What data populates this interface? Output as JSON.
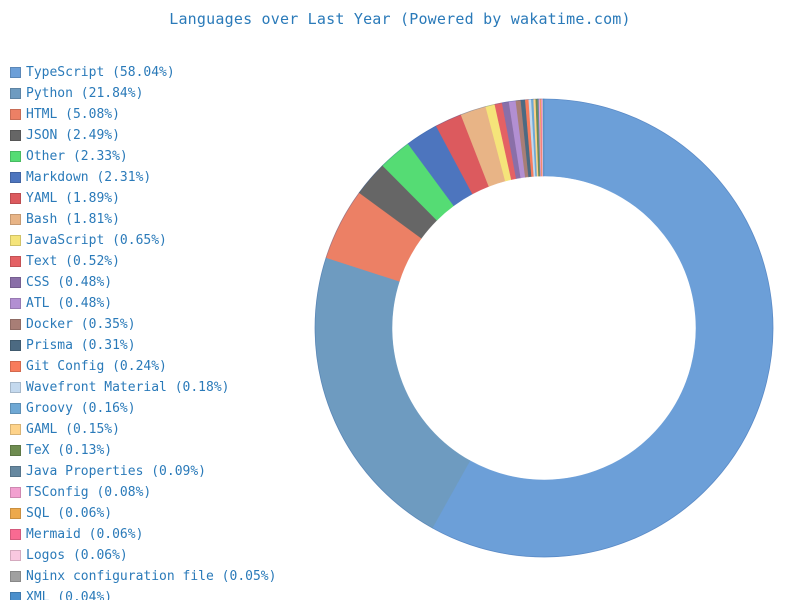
{
  "title": "Languages over Last Year (Powered by wakatime.com)",
  "colors": {
    "title_text": "#2a7ab9",
    "legend_text": "#2a7ab9",
    "background": "#ffffff"
  },
  "chart_data": {
    "type": "pie",
    "donut": true,
    "title": "Languages over Last Year (Powered by wakatime.com)",
    "legend_position": "left",
    "center": [
      544,
      328
    ],
    "outer_radius": 229,
    "inner_radius": 152,
    "start_angle_deg": 0,
    "direction": "clockwise",
    "categories": [
      "TypeScript",
      "Python",
      "HTML",
      "JSON",
      "Other",
      "Markdown",
      "YAML",
      "Bash",
      "JavaScript",
      "Text",
      "CSS",
      "ATL",
      "Docker",
      "Prisma",
      "Git Config",
      "Wavefront Material",
      "Groovy",
      "GAML",
      "TeX",
      "Java Properties",
      "TSConfig",
      "SQL",
      "Mermaid",
      "Logos",
      "Nginx configuration file",
      "XML"
    ],
    "values": [
      58.04,
      21.84,
      5.08,
      2.49,
      2.33,
      2.31,
      1.89,
      1.81,
      0.65,
      0.52,
      0.48,
      0.48,
      0.35,
      0.31,
      0.24,
      0.18,
      0.16,
      0.15,
      0.13,
      0.09,
      0.08,
      0.06,
      0.06,
      0.06,
      0.05,
      0.04
    ],
    "slice_colors": [
      "#6c9fd8",
      "#6e9bc0",
      "#ec8065",
      "#666666",
      "#55dc74",
      "#4d75be",
      "#dc5a5e",
      "#e8b486",
      "#f5e47a",
      "#e46164",
      "#8a6fa8",
      "#b28fd2",
      "#a87e76",
      "#4c6a82",
      "#f87c5c",
      "#c4d9ee",
      "#6fa8d4",
      "#fed38a",
      "#6e8c50",
      "#6688a0",
      "#f2a0d0",
      "#eda94c",
      "#f96a92",
      "#f9c8e0",
      "#a0a0a0",
      "#4b8fcc"
    ]
  },
  "legend": {
    "items": [
      {
        "label": "TypeScript (58.04%)",
        "color": "#6c9fd8"
      },
      {
        "label": "Python (21.84%)",
        "color": "#6e9bc0"
      },
      {
        "label": "HTML (5.08%)",
        "color": "#ec8065"
      },
      {
        "label": "JSON (2.49%)",
        "color": "#666666"
      },
      {
        "label": "Other (2.33%)",
        "color": "#55dc74"
      },
      {
        "label": "Markdown (2.31%)",
        "color": "#4d75be"
      },
      {
        "label": "YAML (1.89%)",
        "color": "#dc5a5e"
      },
      {
        "label": "Bash (1.81%)",
        "color": "#e8b486"
      },
      {
        "label": "JavaScript (0.65%)",
        "color": "#f5e47a"
      },
      {
        "label": "Text (0.52%)",
        "color": "#e46164"
      },
      {
        "label": "CSS (0.48%)",
        "color": "#8a6fa8"
      },
      {
        "label": "ATL (0.48%)",
        "color": "#b28fd2"
      },
      {
        "label": "Docker (0.35%)",
        "color": "#a87e76"
      },
      {
        "label": "Prisma (0.31%)",
        "color": "#4c6a82"
      },
      {
        "label": "Git Config (0.24%)",
        "color": "#f87c5c"
      },
      {
        "label": "Wavefront Material (0.18%)",
        "color": "#c4d9ee"
      },
      {
        "label": "Groovy (0.16%)",
        "color": "#6fa8d4"
      },
      {
        "label": "GAML (0.15%)",
        "color": "#fed38a"
      },
      {
        "label": "TeX (0.13%)",
        "color": "#6e8c50"
      },
      {
        "label": "Java Properties (0.09%)",
        "color": "#6688a0"
      },
      {
        "label": "TSConfig (0.08%)",
        "color": "#f2a0d0"
      },
      {
        "label": "SQL (0.06%)",
        "color": "#eda94c"
      },
      {
        "label": "Mermaid (0.06%)",
        "color": "#f96a92"
      },
      {
        "label": "Logos (0.06%)",
        "color": "#f9c8e0"
      },
      {
        "label": "Nginx configuration file (0.05%)",
        "color": "#a0a0a0"
      },
      {
        "label": "XML (0.04%)",
        "color": "#4b8fcc"
      }
    ]
  }
}
